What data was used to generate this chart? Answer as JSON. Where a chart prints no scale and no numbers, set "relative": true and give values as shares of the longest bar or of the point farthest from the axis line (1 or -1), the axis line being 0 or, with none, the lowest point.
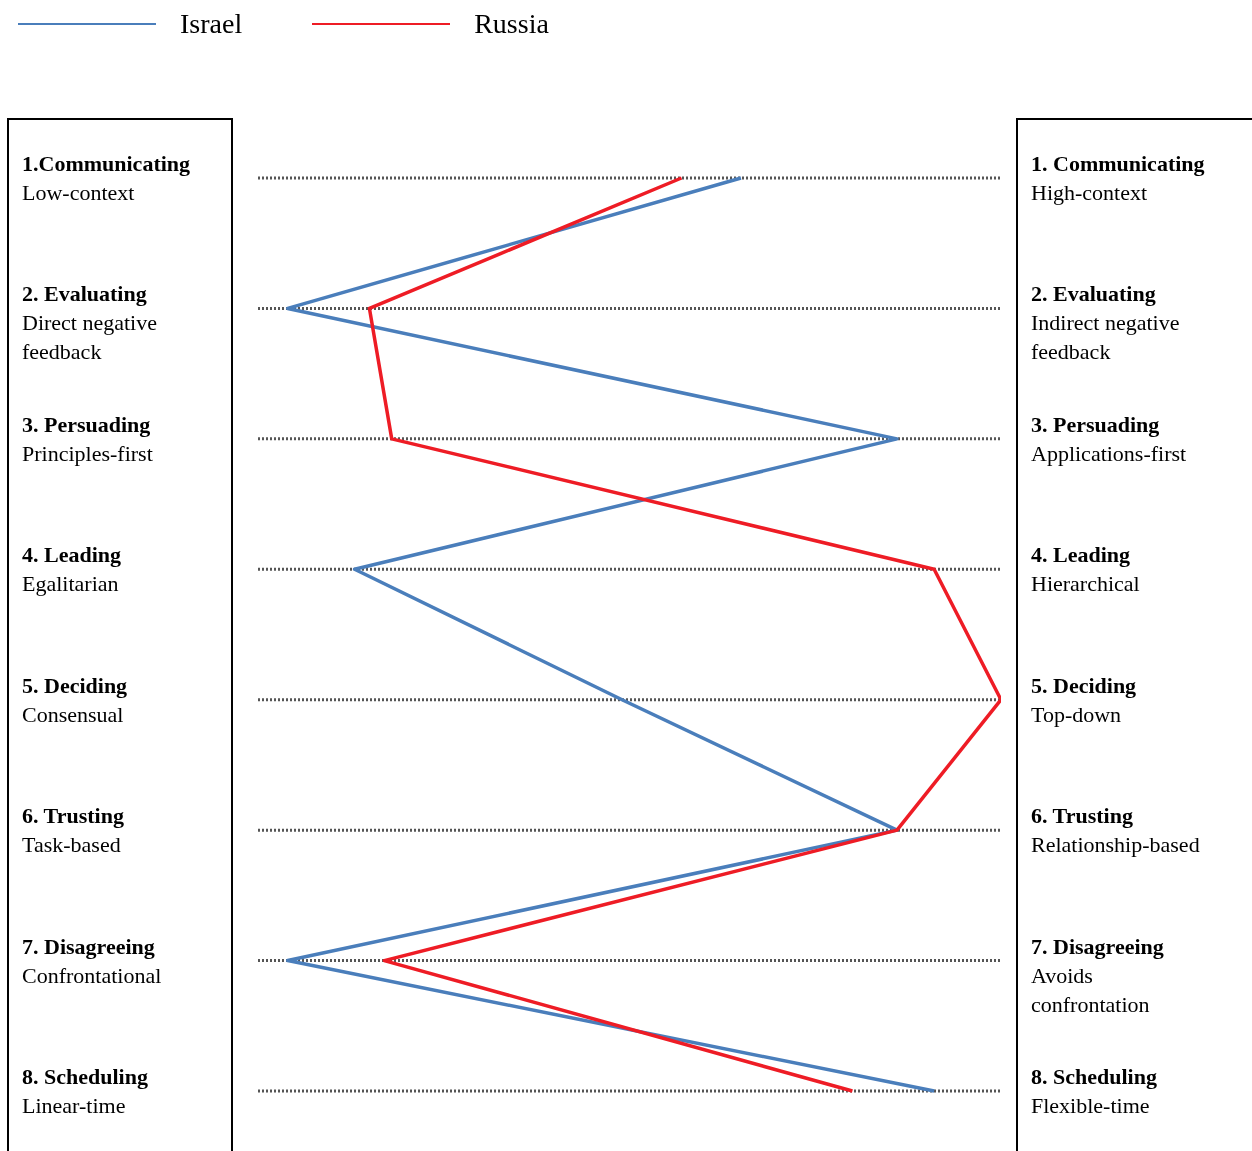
{
  "chart_data": {
    "type": "line",
    "orientation": "horizontal",
    "relative": true,
    "categories": [
      "1.Communicating\nLow-context",
      "2. Evaluating\nDirect negative\nfeedback",
      "3. Persuading\nPrinciples-first",
      "4. Leading\nEgalitarian",
      "5. Deciding\nConsensual",
      "6. Trusting\nTask-based",
      "7. Disagreeing\nConfrontational",
      "8. Scheduling\nLinear-time"
    ],
    "y2_categories": [
      "1. Communicating\nHigh-context",
      "2. Evaluating\nIndirect negative\nfeedback",
      "3. Persuading\nApplications-first",
      "4. Leading\nHierarchical",
      "5. Deciding\nTop-down",
      "6. Trusting\nRelationship-based",
      "7. Disagreeing\nAvoids\nconfrontation",
      "8. Scheduling\nFlexible-time"
    ],
    "series": [
      {
        "name": "Israel",
        "color": "#4a7ebb",
        "values": [
          0.65,
          0.04,
          0.86,
          0.13,
          0.49,
          0.86,
          0.04,
          0.91
        ]
      },
      {
        "name": "Russia",
        "color": "#ee1c25",
        "values": [
          0.57,
          0.15,
          0.18,
          0.91,
          1,
          0.86,
          0.17,
          0.8
        ]
      }
    ],
    "grid": "y",
    "legend": "top left",
    "marker": "none",
    "line_style": "solid"
  }
}
